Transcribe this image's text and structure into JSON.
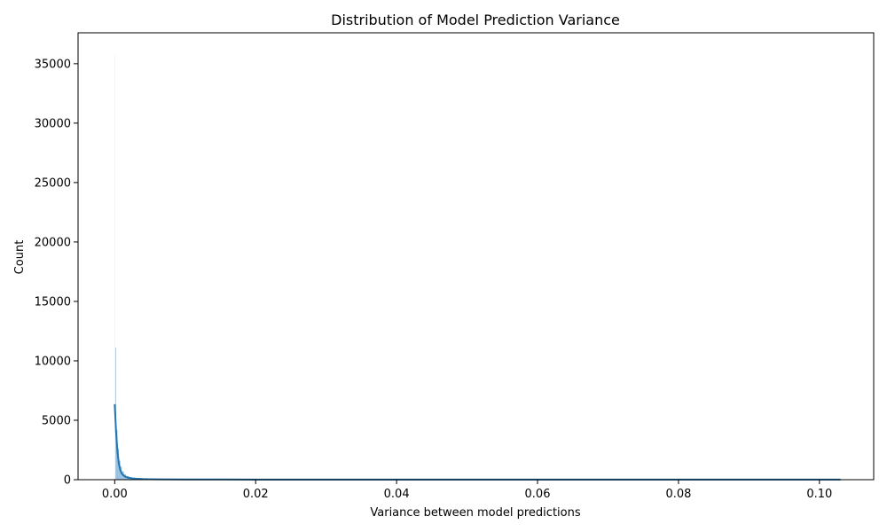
{
  "chart_data": {
    "type": "histogram",
    "title": "Distribution of Model Prediction Variance",
    "xlabel": "Variance between model predictions",
    "ylabel": "Count",
    "xlim": [
      -0.0052,
      0.1077
    ],
    "ylim": [
      0,
      37600
    ],
    "x_ticks": [
      0.0,
      0.02,
      0.04,
      0.06,
      0.08,
      0.1
    ],
    "x_tick_labels": [
      "0.00",
      "0.02",
      "0.04",
      "0.06",
      "0.08",
      "0.10"
    ],
    "y_ticks": [
      0,
      5000,
      10000,
      15000,
      20000,
      25000,
      30000,
      35000
    ],
    "y_tick_labels": [
      "0",
      "5000",
      "10000",
      "15000",
      "20000",
      "25000",
      "30000",
      "35000"
    ],
    "grid": false,
    "colors": {
      "bar": "#4c8ec2",
      "kde": "#1f77b4",
      "axis": "#000000"
    },
    "histogram": {
      "bins": [
        {
          "x0": 0.0,
          "x1": 0.0001,
          "count": 35800
        },
        {
          "x0": 0.0001,
          "x1": 0.0002,
          "count": 11100
        },
        {
          "x0": 0.0002,
          "x1": 0.0004,
          "count": 4200
        },
        {
          "x0": 0.0004,
          "x1": 0.0006,
          "count": 2600
        },
        {
          "x0": 0.0006,
          "x1": 0.0008,
          "count": 1600
        },
        {
          "x0": 0.0008,
          "x1": 0.001,
          "count": 1100
        },
        {
          "x0": 0.001,
          "x1": 0.0013,
          "count": 700
        },
        {
          "x0": 0.0013,
          "x1": 0.0016,
          "count": 450
        },
        {
          "x0": 0.0016,
          "x1": 0.002,
          "count": 300
        },
        {
          "x0": 0.002,
          "x1": 0.0025,
          "count": 180
        },
        {
          "x0": 0.0025,
          "x1": 0.003,
          "count": 120
        },
        {
          "x0": 0.003,
          "x1": 0.004,
          "count": 80
        },
        {
          "x0": 0.004,
          "x1": 0.005,
          "count": 50
        },
        {
          "x0": 0.005,
          "x1": 0.007,
          "count": 30
        },
        {
          "x0": 0.007,
          "x1": 0.01,
          "count": 18
        },
        {
          "x0": 0.01,
          "x1": 0.015,
          "count": 10
        },
        {
          "x0": 0.015,
          "x1": 0.025,
          "count": 6
        },
        {
          "x0": 0.025,
          "x1": 0.04,
          "count": 4
        },
        {
          "x0": 0.04,
          "x1": 0.06,
          "count": 3
        },
        {
          "x0": 0.06,
          "x1": 0.08,
          "count": 2
        },
        {
          "x0": 0.08,
          "x1": 0.103,
          "count": 2
        }
      ]
    },
    "kde": {
      "points": [
        {
          "x": 0.0,
          "y": 6350
        },
        {
          "x": 0.0002,
          "y": 4000
        },
        {
          "x": 0.0004,
          "y": 2300
        },
        {
          "x": 0.0006,
          "y": 1300
        },
        {
          "x": 0.0008,
          "y": 800
        },
        {
          "x": 0.001,
          "y": 520
        },
        {
          "x": 0.0013,
          "y": 330
        },
        {
          "x": 0.0016,
          "y": 230
        },
        {
          "x": 0.002,
          "y": 160
        },
        {
          "x": 0.0025,
          "y": 110
        },
        {
          "x": 0.003,
          "y": 85
        },
        {
          "x": 0.004,
          "y": 55
        },
        {
          "x": 0.005,
          "y": 40
        },
        {
          "x": 0.007,
          "y": 28
        },
        {
          "x": 0.01,
          "y": 20
        },
        {
          "x": 0.015,
          "y": 15
        },
        {
          "x": 0.02,
          "y": 12
        },
        {
          "x": 0.04,
          "y": 9
        },
        {
          "x": 0.06,
          "y": 7
        },
        {
          "x": 0.08,
          "y": 6
        },
        {
          "x": 0.1,
          "y": 5
        },
        {
          "x": 0.103,
          "y": 5
        }
      ]
    }
  }
}
